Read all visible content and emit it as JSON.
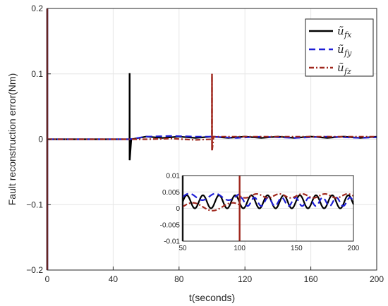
{
  "chart_data": [
    {
      "type": "line",
      "title": "",
      "xlabel": "t(seconds)",
      "ylabel": "Fault reconstruction error(Nm)",
      "xlim": [
        0,
        200
      ],
      "ylim": [
        -0.2,
        0.2
      ],
      "xticks": [
        0,
        40,
        80,
        120,
        160,
        200
      ],
      "yticks": [
        -0.2,
        -0.1,
        0,
        0.1,
        0.2
      ],
      "xtick_labels": [
        "0",
        "40",
        "80",
        "120",
        "160",
        "200"
      ],
      "ytick_labels": [
        "−0.2",
        "−0.1",
        "0",
        "0.1",
        "0.2"
      ],
      "grid": true,
      "legend_position": "top-right",
      "series": [
        {
          "name": "ũ_fx",
          "color": "#000000",
          "style": "solid",
          "spikes": [
            {
              "t": 0,
              "min": -0.2,
              "max": 0.2
            },
            {
              "t": 50,
              "min": -0.032,
              "max": 0.101
            }
          ],
          "points": [
            [
              0,
              0
            ],
            [
              1,
              0
            ],
            [
              49.9,
              0
            ],
            [
              50,
              0.101
            ],
            [
              50.1,
              -0.032
            ],
            [
              51,
              0
            ],
            [
              60,
              0.004
            ],
            [
              70,
              0.002
            ],
            [
              80,
              0.004
            ],
            [
              90,
              0.002
            ],
            [
              100,
              0.004
            ],
            [
              110,
              0.002
            ],
            [
              120,
              0.004
            ],
            [
              130,
              0.002
            ],
            [
              140,
              0.004
            ],
            [
              150,
              0.002
            ],
            [
              160,
              0.004
            ],
            [
              170,
              0.002
            ],
            [
              180,
              0.004
            ],
            [
              190,
              0.002
            ],
            [
              200,
              0.004
            ]
          ]
        },
        {
          "name": "ũ_fy",
          "color": "#1f1fd6",
          "style": "dashed",
          "spikes": [
            {
              "t": 0,
              "min": -0.2,
              "max": 0.2
            }
          ],
          "points": [
            [
              0,
              0
            ],
            [
              1,
              0
            ],
            [
              50,
              0
            ],
            [
              60,
              0.004
            ],
            [
              75,
              0.005
            ],
            [
              90,
              0.004
            ],
            [
              100,
              0.004
            ],
            [
              115,
              0.002
            ],
            [
              130,
              0.004
            ],
            [
              150,
              0.002
            ],
            [
              170,
              0.004
            ],
            [
              190,
              0.002
            ],
            [
              200,
              0.003
            ]
          ]
        },
        {
          "name": "ũ_fz",
          "color": "#a0281e",
          "style": "dashdot",
          "spikes": [
            {
              "t": 0,
              "min": -0.2,
              "max": 0.2
            },
            {
              "t": 100,
              "min": -0.017,
              "max": 0.1
            }
          ],
          "points": [
            [
              0,
              0
            ],
            [
              1,
              0
            ],
            [
              50,
              0
            ],
            [
              60,
              0
            ],
            [
              75,
              0.001
            ],
            [
              90,
              -0.001
            ],
            [
              99.9,
              0
            ],
            [
              100,
              0.1
            ],
            [
              100.1,
              -0.017
            ],
            [
              101,
              0.004
            ],
            [
              120,
              0.004
            ],
            [
              140,
              0.004
            ],
            [
              160,
              0.004
            ],
            [
              180,
              0.004
            ],
            [
              200,
              0.004
            ]
          ]
        }
      ]
    },
    {
      "type": "line",
      "title": "",
      "note": "inset zoom",
      "xlim": [
        50,
        200
      ],
      "ylim": [
        -0.01,
        0.01
      ],
      "xticks": [
        50,
        100,
        150,
        200
      ],
      "yticks": [
        -0.01,
        -0.005,
        0,
        0.005,
        0.01
      ],
      "xtick_labels": [
        "50",
        "100",
        "150",
        "200"
      ],
      "ytick_labels": [
        "-0.01",
        "-0.005",
        "0",
        "0.005",
        "0.01"
      ],
      "grid": true,
      "series": [
        {
          "name": "ũ_fx",
          "color": "#000000",
          "style": "solid",
          "offset": 0.002,
          "amplitude": 0.002,
          "period": 14.2,
          "spikes": [
            {
              "t": 50,
              "min": -0.01,
              "max": 0.01
            }
          ]
        },
        {
          "name": "ũ_fy",
          "color": "#1f1fd6",
          "style": "dashed",
          "offset": 0.0035,
          "amplitude": 0.001,
          "period": 23,
          "after_t": 100,
          "after_offset": 0.002,
          "after_amplitude": 0.0013,
          "after_period": 12
        },
        {
          "name": "ũ_fz",
          "color": "#a0281e",
          "style": "dashdot",
          "offset": 0.0005,
          "amplitude": 0.0012,
          "period": 35,
          "after_t": 100,
          "after_offset": 0.0038,
          "after_amplitude": 0.0006,
          "after_period": 20,
          "spikes": [
            {
              "t": 100,
              "min": -0.01,
              "max": 0.01
            }
          ]
        }
      ]
    }
  ],
  "legend": {
    "entries": [
      {
        "base": "ũ",
        "sub": "fx"
      },
      {
        "base": "ũ",
        "sub": "fy"
      },
      {
        "base": "ũ",
        "sub": "fz"
      }
    ]
  }
}
